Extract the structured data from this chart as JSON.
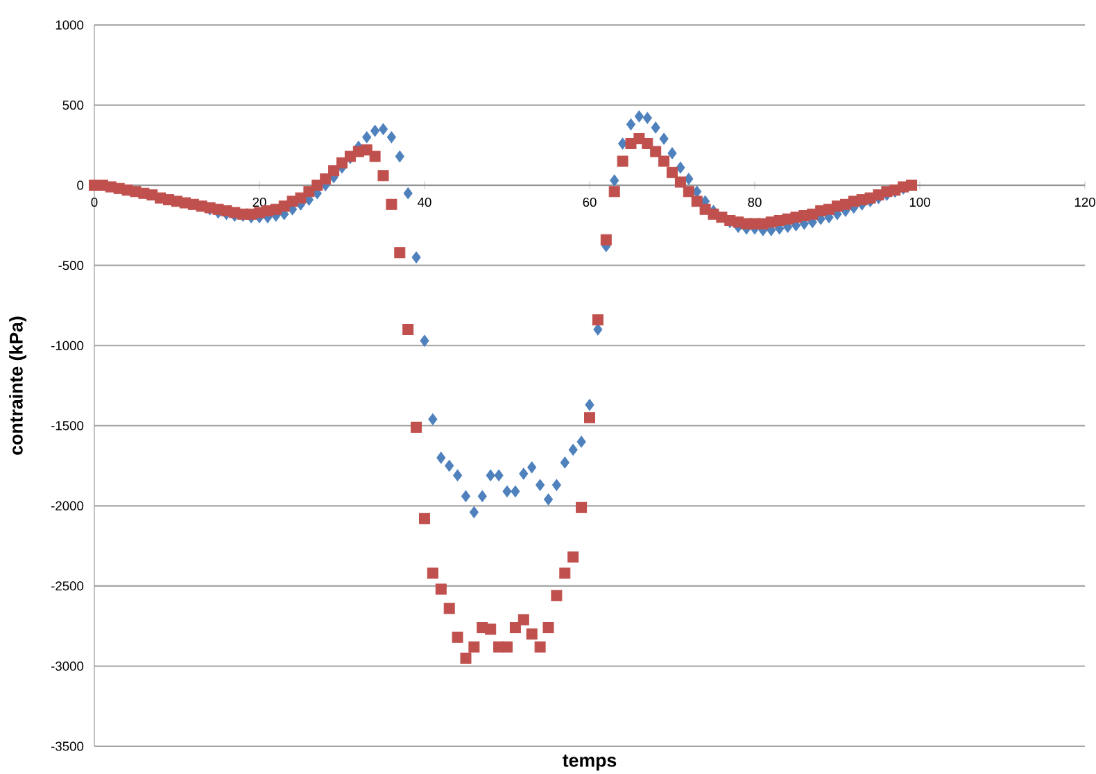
{
  "chart_data": {
    "type": "scatter",
    "xlabel": "temps",
    "ylabel": "contrainte (kPa)",
    "xlim": [
      0,
      120
    ],
    "xticks": [
      0,
      20,
      40,
      60,
      80,
      100,
      120
    ],
    "ylim": [
      -3500,
      1000
    ],
    "yticks": [
      -3500,
      -3000,
      -2500,
      -2000,
      -1500,
      -1000,
      -500,
      0,
      500,
      1000
    ],
    "grid": "y",
    "x": [
      0,
      1,
      2,
      3,
      4,
      5,
      6,
      7,
      8,
      9,
      10,
      11,
      12,
      13,
      14,
      15,
      16,
      17,
      18,
      19,
      20,
      21,
      22,
      23,
      24,
      25,
      26,
      27,
      28,
      29,
      30,
      31,
      32,
      33,
      34,
      35,
      36,
      37,
      38,
      39,
      40,
      41,
      42,
      43,
      44,
      45,
      46,
      47,
      48,
      49,
      50,
      51,
      52,
      53,
      54,
      55,
      56,
      57,
      58,
      59,
      60,
      61,
      62,
      63,
      64,
      65,
      66,
      67,
      68,
      69,
      70,
      71,
      72,
      73,
      74,
      75,
      76,
      77,
      78,
      79,
      80,
      81,
      82,
      83,
      84,
      85,
      86,
      87,
      88,
      89,
      90,
      91,
      92,
      93,
      94,
      95,
      96,
      97,
      98,
      99
    ],
    "series": [
      {
        "color": "#4f81bd",
        "marker": "diamond",
        "values": [
          null,
          null,
          null,
          null,
          null,
          null,
          null,
          null,
          null,
          null,
          null,
          null,
          null,
          null,
          -150,
          -170,
          -180,
          -190,
          -190,
          -200,
          -200,
          -200,
          -190,
          -180,
          -150,
          -120,
          -90,
          -50,
          0,
          50,
          110,
          170,
          240,
          300,
          340,
          350,
          300,
          180,
          -50,
          -450,
          -970,
          -1460,
          -1700,
          -1750,
          -1810,
          -1940,
          -2040,
          -1940,
          -1810,
          -1810,
          -1910,
          -1910,
          -1800,
          -1760,
          -1870,
          -1960,
          -1870,
          -1730,
          -1650,
          -1600,
          -1370,
          -900,
          -380,
          30,
          260,
          380,
          430,
          420,
          360,
          290,
          200,
          110,
          40,
          -40,
          -100,
          -160,
          null,
          -230,
          -260,
          -270,
          -270,
          -280,
          -280,
          -270,
          -260,
          -250,
          -240,
          -230,
          -210,
          -200,
          -180,
          -160,
          -140,
          -120,
          -100,
          -80,
          -60,
          -40,
          -20,
          null
        ]
      },
      {
        "color": "#c0504d",
        "marker": "square",
        "values": [
          0,
          0,
          -10,
          -20,
          -30,
          -40,
          -50,
          -60,
          -80,
          -90,
          -100,
          -110,
          -120,
          -130,
          -140,
          -150,
          -160,
          -170,
          -180,
          -180,
          -170,
          -160,
          -150,
          -130,
          -100,
          -80,
          -40,
          0,
          40,
          90,
          140,
          180,
          210,
          220,
          180,
          60,
          -120,
          -420,
          -900,
          -1510,
          -2080,
          -2420,
          -2520,
          -2640,
          -2820,
          -2950,
          -2880,
          -2760,
          -2770,
          -2880,
          -2880,
          -2760,
          -2710,
          -2800,
          -2880,
          -2760,
          -2560,
          -2420,
          -2320,
          -2010,
          -1450,
          -840,
          -340,
          -40,
          150,
          260,
          290,
          260,
          210,
          150,
          80,
          20,
          -40,
          -100,
          -150,
          -180,
          -200,
          -220,
          -230,
          -240,
          -240,
          -240,
          -230,
          -220,
          -210,
          -200,
          -190,
          -180,
          -160,
          -150,
          -130,
          -120,
          -100,
          -90,
          -80,
          -60,
          -40,
          -30,
          -10,
          0
        ]
      }
    ]
  }
}
